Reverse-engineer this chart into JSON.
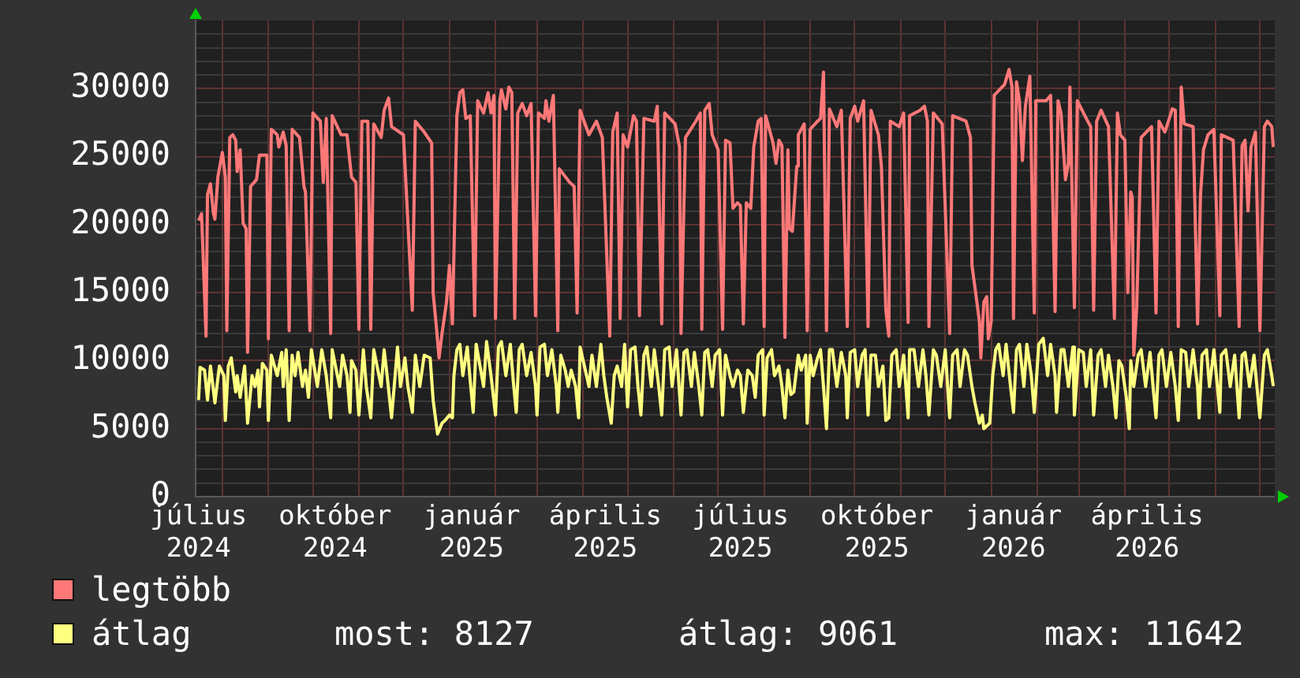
{
  "chart_data": {
    "type": "line",
    "legend": "bottom left",
    "grid": true,
    "marker": "none",
    "xlim": [
      "2024-07-14",
      "2026-07-11"
    ],
    "xticks": [
      {
        "value": "2024-07-16",
        "label": "július 2024"
      },
      {
        "value": "2024-08-01",
        "label": null
      },
      {
        "value": "2024-09-01",
        "label": null
      },
      {
        "value": "2024-10-01",
        "label": null
      },
      {
        "value": "2024-10-16",
        "label": "október 2024"
      },
      {
        "value": "2024-11-01",
        "label": null
      },
      {
        "value": "2024-12-01",
        "label": null
      },
      {
        "value": "2025-01-01",
        "label": null
      },
      {
        "value": "2025-01-16",
        "label": "január 2025"
      },
      {
        "value": "2025-02-01",
        "label": null
      },
      {
        "value": "2025-03-01",
        "label": null
      },
      {
        "value": "2025-04-01",
        "label": null
      },
      {
        "value": "2025-04-16",
        "label": "április 2025"
      },
      {
        "value": "2025-05-01",
        "label": null
      },
      {
        "value": "2025-06-01",
        "label": null
      },
      {
        "value": "2025-07-01",
        "label": null
      },
      {
        "value": "2025-07-16",
        "label": "július 2025"
      },
      {
        "value": "2025-08-01",
        "label": null
      },
      {
        "value": "2025-09-01",
        "label": null
      },
      {
        "value": "2025-10-01",
        "label": null
      },
      {
        "value": "2025-10-16",
        "label": "október 2025"
      },
      {
        "value": "2025-11-01",
        "label": null
      },
      {
        "value": "2025-12-01",
        "label": null
      },
      {
        "value": "2026-01-01",
        "label": null
      },
      {
        "value": "2026-01-16",
        "label": "január 2026"
      },
      {
        "value": "2026-02-01",
        "label": null
      },
      {
        "value": "2026-03-01",
        "label": null
      },
      {
        "value": "2026-04-01",
        "label": null
      },
      {
        "value": "2026-04-16",
        "label": "április 2026"
      },
      {
        "value": "2026-05-01",
        "label": null
      },
      {
        "value": "2026-06-01",
        "label": null
      },
      {
        "value": "2026-07-01",
        "label": null
      }
    ],
    "ylim": [
      0,
      35000
    ],
    "yticks": [
      0,
      {
        "value": 1000,
        "label": null
      },
      {
        "value": 2000,
        "label": null
      },
      {
        "value": 3000,
        "label": null
      },
      {
        "value": 4000,
        "label": null
      },
      5000,
      {
        "value": 6000,
        "label": null
      },
      {
        "value": 7000,
        "label": null
      },
      {
        "value": 8000,
        "label": null
      },
      {
        "value": 9000,
        "label": null
      },
      10000,
      {
        "value": 11000,
        "label": null
      },
      {
        "value": 12000,
        "label": null
      },
      {
        "value": 13000,
        "label": null
      },
      {
        "value": 14000,
        "label": null
      },
      15000,
      {
        "value": 16000,
        "label": null
      },
      {
        "value": 17000,
        "label": null
      },
      {
        "value": 18000,
        "label": null
      },
      {
        "value": 19000,
        "label": null
      },
      20000,
      {
        "value": 21000,
        "label": null
      },
      {
        "value": 22000,
        "label": null
      },
      {
        "value": 23000,
        "label": null
      },
      {
        "value": 24000,
        "label": null
      },
      25000,
      {
        "value": 26000,
        "label": null
      },
      {
        "value": 27000,
        "label": null
      },
      {
        "value": 28000,
        "label": null
      },
      {
        "value": 29000,
        "label": null
      },
      30000,
      {
        "value": 31000,
        "label": null
      },
      {
        "value": 32000,
        "label": null
      },
      {
        "value": 33000,
        "label": null
      },
      {
        "value": 34000,
        "label": null
      }
    ],
    "annotations": [
      "most: 8127",
      "átlag: 9061",
      "max: 11642"
    ],
    "series": [
      {
        "name": "legtöbb",
        "color": "#ff7878",
        "x": [
          "2024-07-16",
          "2024-07-18",
          "2024-07-21",
          "2024-07-22",
          "2024-07-24",
          "2024-07-26",
          "2024-07-27",
          "2024-07-29",
          "2024-08-01",
          "2024-08-03",
          "2024-08-04",
          "2024-08-06",
          "2024-08-08",
          "2024-08-10",
          "2024-08-11",
          "2024-08-13",
          "2024-08-15",
          "2024-08-17",
          "2024-08-18",
          "2024-08-20",
          "2024-08-24",
          "2024-08-26",
          "2024-08-31",
          "2024-09-01",
          "2024-09-03",
          "2024-09-07",
          "2024-09-08",
          "2024-09-11",
          "2024-09-13",
          "2024-09-15",
          "2024-09-17",
          "2024-09-22",
          "2024-09-25",
          "2024-09-26",
          "2024-09-29",
          "2024-10-01",
          "2024-10-06",
          "2024-10-08",
          "2024-10-10",
          "2024-10-13",
          "2024-10-14",
          "2024-10-20",
          "2024-10-24",
          "2024-10-27",
          "2024-10-30",
          "2024-11-01",
          "2024-11-03",
          "2024-11-07",
          "2024-11-09",
          "2024-11-11",
          "2024-11-16",
          "2024-11-18",
          "2024-11-21",
          "2024-11-23",
          "2024-12-01",
          "2024-12-07",
          "2024-12-09",
          "2024-12-15",
          "2024-12-20",
          "2024-12-21",
          "2024-12-23",
          "2024-12-25",
          "2024-12-27",
          "2024-12-30",
          "2025-01-01",
          "2025-01-03",
          "2025-01-06",
          "2025-01-08",
          "2025-01-10",
          "2025-01-12",
          "2025-01-15",
          "2025-01-18",
          "2025-01-20",
          "2025-01-24",
          "2025-01-27",
          "2025-01-29",
          "2025-01-31",
          "2025-02-01",
          "2025-02-04",
          "2025-02-05",
          "2025-02-08",
          "2025-02-10",
          "2025-02-12",
          "2025-02-14",
          "2025-02-16",
          "2025-02-19",
          "2025-02-22",
          "2025-02-25",
          "2025-02-28",
          "2025-03-02",
          "2025-03-06",
          "2025-03-07",
          "2025-03-09",
          "2025-03-12",
          "2025-03-15",
          "2025-03-16",
          "2025-03-23",
          "2025-03-26",
          "2025-03-28",
          "2025-03-30",
          "2025-04-05",
          "2025-04-10",
          "2025-04-14",
          "2025-04-19",
          "2025-04-21",
          "2025-04-24",
          "2025-04-26",
          "2025-04-28",
          "2025-05-01",
          "2025-05-05",
          "2025-05-07",
          "2025-05-09",
          "2025-05-12",
          "2025-05-19",
          "2025-05-21",
          "2025-05-24",
          "2025-05-26",
          "2025-06-02",
          "2025-06-05",
          "2025-06-06",
          "2025-06-09",
          "2025-06-16",
          "2025-06-19",
          "2025-06-20",
          "2025-06-22",
          "2025-06-25",
          "2025-06-27",
          "2025-07-01",
          "2025-07-04",
          "2025-07-06",
          "2025-07-09",
          "2025-07-11",
          "2025-07-14",
          "2025-07-16",
          "2025-07-18",
          "2025-07-20",
          "2025-07-23",
          "2025-07-25",
          "2025-07-28",
          "2025-07-30",
          "2025-08-01",
          "2025-08-02",
          "2025-08-07",
          "2025-08-09",
          "2025-08-11",
          "2025-08-13",
          "2025-08-15",
          "2025-08-17",
          "2025-08-18",
          "2025-08-20",
          "2025-08-23",
          "2025-08-24",
          "2025-08-28",
          "2025-08-30",
          "2025-09-01",
          "2025-09-06",
          "2025-09-08",
          "2025-09-10",
          "2025-09-12",
          "2025-09-14",
          "2025-09-19",
          "2025-09-22",
          "2025-09-26",
          "2025-09-28",
          "2025-10-01",
          "2025-10-03",
          "2025-10-07",
          "2025-10-10",
          "2025-10-12",
          "2025-10-17",
          "2025-10-19",
          "2025-10-22",
          "2025-10-24",
          "2025-10-25",
          "2025-10-31",
          "2025-11-03",
          "2025-11-06",
          "2025-11-07",
          "2025-11-14",
          "2025-11-17",
          "2025-11-19",
          "2025-11-20",
          "2025-11-23",
          "2025-11-29",
          "2025-12-04",
          "2025-12-06",
          "2025-12-15",
          "2025-12-18",
          "2025-12-19",
          "2025-12-21",
          "2025-12-24",
          "2025-12-25",
          "2025-12-27",
          "2025-12-29",
          "2025-12-30",
          "2026-01-01",
          "2026-01-03",
          "2026-01-10",
          "2026-01-13",
          "2026-01-15",
          "2026-01-16",
          "2026-01-18",
          "2026-01-20",
          "2026-01-22",
          "2026-01-24",
          "2026-01-27",
          "2026-01-30",
          "2026-01-31",
          "2026-02-07",
          "2026-02-10",
          "2026-02-13",
          "2026-02-15",
          "2026-02-17",
          "2026-02-20",
          "2026-02-22",
          "2026-02-23",
          "2026-02-26",
          "2026-02-28",
          "2026-03-06",
          "2026-03-09",
          "2026-03-11",
          "2026-03-13",
          "2026-03-16",
          "2026-03-21",
          "2026-03-25",
          "2026-03-27",
          "2026-03-29",
          "2026-04-01",
          "2026-04-03",
          "2026-04-05",
          "2026-04-06",
          "2026-04-07",
          "2026-04-09",
          "2026-04-12",
          "2026-04-19",
          "2026-04-22",
          "2026-04-24",
          "2026-04-28",
          "2026-05-03",
          "2026-05-05",
          "2026-05-07",
          "2026-05-09",
          "2026-05-11",
          "2026-05-17",
          "2026-05-20",
          "2026-05-22",
          "2026-05-24",
          "2026-05-27",
          "2026-05-31",
          "2026-06-04",
          "2026-06-05",
          "2026-06-13",
          "2026-06-17",
          "2026-06-19",
          "2026-06-21",
          "2026-06-23",
          "2026-06-25",
          "2026-06-28",
          "2026-07-01",
          "2026-07-04",
          "2026-07-06",
          "2026-07-09",
          "2026-07-10"
        ],
        "values": [
          20300,
          20800,
          11800,
          22200,
          23000,
          20800,
          20400,
          23500,
          25300,
          23500,
          12200,
          26400,
          26600,
          26200,
          23900,
          25500,
          20100,
          19700,
          10600,
          22800,
          23300,
          25100,
          25100,
          11600,
          27000,
          26600,
          25700,
          26800,
          25800,
          12200,
          27000,
          26400,
          22800,
          22400,
          12200,
          28200,
          27600,
          23100,
          27800,
          12000,
          28000,
          26600,
          26600,
          23500,
          23100,
          12300,
          27600,
          27600,
          12300,
          27400,
          26400,
          28400,
          29300,
          27200,
          26600,
          13700,
          27600,
          26800,
          26000,
          15000,
          12700,
          10200,
          12000,
          14300,
          17000,
          12700,
          28000,
          29700,
          29900,
          27800,
          28000,
          13300,
          29100,
          28200,
          29700,
          28200,
          29500,
          13100,
          29100,
          29900,
          28500,
          30100,
          29700,
          13100,
          28200,
          28900,
          28000,
          28900,
          13300,
          28200,
          27800,
          29100,
          27600,
          29500,
          12200,
          24100,
          23100,
          22800,
          13500,
          28400,
          26600,
          27600,
          26400,
          11800,
          26800,
          28200,
          13100,
          26600,
          25700,
          28000,
          27600,
          13300,
          27800,
          27600,
          28700,
          12700,
          28200,
          27400,
          25700,
          12000,
          26400,
          27600,
          28200,
          12300,
          28400,
          28900,
          26600,
          25500,
          12300,
          26200,
          26000,
          21200,
          21600,
          21400,
          12700,
          21600,
          21200,
          25700,
          27600,
          27800,
          12500,
          28000,
          26000,
          24500,
          26200,
          25800,
          11700,
          25500,
          19700,
          19500,
          24300,
          26600,
          27400,
          12200,
          27000,
          27600,
          27800,
          31200,
          12200,
          28500,
          27200,
          28400,
          12500,
          27800,
          28700,
          27600,
          29100,
          12500,
          28400,
          26600,
          24300,
          13700,
          11800,
          27600,
          27200,
          28200,
          12800,
          28000,
          28400,
          28700,
          27600,
          12500,
          28200,
          27400,
          12000,
          28000,
          27600,
          26400,
          17000,
          15400,
          12900,
          10200,
          14300,
          14700,
          11600,
          12900,
          29500,
          30300,
          31400,
          30100,
          13100,
          30500,
          29100,
          24700,
          28700,
          30900,
          13500,
          29100,
          29100,
          29500,
          13600,
          29100,
          28200,
          23300,
          24500,
          30100,
          13900,
          29100,
          27800,
          27200,
          13700,
          27600,
          28400,
          27200,
          13100,
          28200,
          26600,
          26200,
          15000,
          22400,
          22000,
          10400,
          13900,
          26400,
          27200,
          13500,
          27600,
          26800,
          28500,
          28400,
          12500,
          30100,
          27400,
          27200,
          12700,
          22200,
          25500,
          26600,
          27000,
          13300,
          26600,
          26200,
          12500,
          25800,
          26200,
          21000,
          25700,
          26800,
          12200,
          27200,
          27600,
          27200,
          25700
        ]
      },
      {
        "name": "átlag",
        "color": "#ffff80",
        "x": [
          "2024-07-16",
          "2024-07-17",
          "2024-07-20",
          "2024-07-22",
          "2024-07-24",
          "2024-07-27",
          "2024-07-30",
          "2024-08-02",
          "2024-08-03",
          "2024-08-05",
          "2024-08-07",
          "2024-08-10",
          "2024-08-11",
          "2024-08-13",
          "2024-08-16",
          "2024-08-18",
          "2024-08-21",
          "2024-08-23",
          "2024-08-25",
          "2024-08-26",
          "2024-08-28",
          "2024-08-31",
          "2024-09-01",
          "2024-09-03",
          "2024-09-07",
          "2024-09-10",
          "2024-09-11",
          "2024-09-13",
          "2024-09-15",
          "2024-09-17",
          "2024-09-19",
          "2024-09-21",
          "2024-09-24",
          "2024-09-26",
          "2024-09-28",
          "2024-09-30",
          "2024-10-04",
          "2024-10-07",
          "2024-10-10",
          "2024-10-13",
          "2024-10-14",
          "2024-10-19",
          "2024-10-21",
          "2024-10-24",
          "2024-10-26",
          "2024-10-27",
          "2024-10-30",
          "2024-11-01",
          "2024-11-04",
          "2024-11-06",
          "2024-11-09",
          "2024-11-11",
          "2024-11-16",
          "2024-11-18",
          "2024-11-20",
          "2024-11-23",
          "2024-11-27",
          "2024-11-29",
          "2024-12-02",
          "2024-12-04",
          "2024-12-07",
          "2024-12-09",
          "2024-12-12",
          "2024-12-15",
          "2024-12-19",
          "2024-12-21",
          "2024-12-24",
          "2024-12-27",
          "2024-12-29",
          "2025-01-01",
          "2025-01-03",
          "2025-01-04",
          "2025-01-06",
          "2025-01-08",
          "2025-01-10",
          "2025-01-13",
          "2025-01-15",
          "2025-01-17",
          "2025-01-19",
          "2025-01-24",
          "2025-01-26",
          "2025-01-29",
          "2025-02-01",
          "2025-02-03",
          "2025-02-05",
          "2025-02-08",
          "2025-02-11",
          "2025-02-13",
          "2025-02-15",
          "2025-02-17",
          "2025-02-19",
          "2025-02-22",
          "2025-02-25",
          "2025-02-28",
          "2025-03-01",
          "2025-03-03",
          "2025-03-06",
          "2025-03-08",
          "2025-03-11",
          "2025-03-14",
          "2025-03-15",
          "2025-03-17",
          "2025-03-20",
          "2025-03-22",
          "2025-03-24",
          "2025-03-27",
          "2025-03-29",
          "2025-03-30",
          "2025-04-05",
          "2025-04-07",
          "2025-04-10",
          "2025-04-13",
          "2025-04-15",
          "2025-04-17",
          "2025-04-20",
          "2025-04-22",
          "2025-04-24",
          "2025-04-27",
          "2025-04-29",
          "2025-05-01",
          "2025-05-03",
          "2025-05-06",
          "2025-05-08",
          "2025-05-10",
          "2025-05-12",
          "2025-05-14",
          "2025-05-17",
          "2025-05-19",
          "2025-05-22",
          "2025-05-24",
          "2025-05-26",
          "2025-05-29",
          "2025-05-31",
          "2025-06-03",
          "2025-06-06",
          "2025-06-08",
          "2025-06-10",
          "2025-06-13",
          "2025-06-15",
          "2025-06-18",
          "2025-06-20",
          "2025-06-22",
          "2025-06-24",
          "2025-06-27",
          "2025-06-29",
          "2025-07-02",
          "2025-07-04",
          "2025-07-06",
          "2025-07-09",
          "2025-07-11",
          "2025-07-14",
          "2025-07-16",
          "2025-07-18",
          "2025-07-21",
          "2025-07-24",
          "2025-07-26",
          "2025-07-28",
          "2025-07-31",
          "2025-08-01",
          "2025-08-03",
          "2025-08-06",
          "2025-08-08",
          "2025-08-11",
          "2025-08-13",
          "2025-08-15",
          "2025-08-17",
          "2025-08-19",
          "2025-08-21",
          "2025-08-24",
          "2025-08-26",
          "2025-08-29",
          "2025-08-30",
          "2025-09-01",
          "2025-09-03",
          "2025-09-06",
          "2025-09-08",
          "2025-09-10",
          "2025-09-12",
          "2025-09-14",
          "2025-09-16",
          "2025-09-19",
          "2025-09-22",
          "2025-09-25",
          "2025-09-26",
          "2025-09-28",
          "2025-10-01",
          "2025-10-03",
          "2025-10-06",
          "2025-10-08",
          "2025-10-10",
          "2025-10-12",
          "2025-10-15",
          "2025-10-17",
          "2025-10-20",
          "2025-10-22",
          "2025-10-24",
          "2025-10-26",
          "2025-10-29",
          "2025-10-31",
          "2025-11-03",
          "2025-11-06",
          "2025-11-07",
          "2025-11-10",
          "2025-11-13",
          "2025-11-16",
          "2025-11-18",
          "2025-11-20",
          "2025-11-23",
          "2025-11-25",
          "2025-11-28",
          "2025-12-01",
          "2025-12-04",
          "2025-12-06",
          "2025-12-09",
          "2025-12-11",
          "2025-12-14",
          "2025-12-16",
          "2025-12-19",
          "2025-12-21",
          "2025-12-24",
          "2025-12-26",
          "2025-12-27",
          "2025-12-29",
          "2025-12-31",
          "2026-01-02",
          "2026-01-04",
          "2026-01-06",
          "2026-01-09",
          "2026-01-11",
          "2026-01-14",
          "2026-01-16",
          "2026-01-18",
          "2026-01-20",
          "2026-01-23",
          "2026-01-25",
          "2026-01-28",
          "2026-01-30",
          "2026-02-02",
          "2026-02-05",
          "2026-02-08",
          "2026-02-10",
          "2026-02-13",
          "2026-02-14",
          "2026-02-17",
          "2026-02-19",
          "2026-02-22",
          "2026-02-25",
          "2026-02-26",
          "2026-03-01",
          "2026-03-04",
          "2026-03-06",
          "2026-03-09",
          "2026-03-11",
          "2026-03-14",
          "2026-03-16",
          "2026-03-19",
          "2026-03-21",
          "2026-03-24",
          "2026-03-26",
          "2026-03-28",
          "2026-03-30",
          "2026-04-02",
          "2026-04-04",
          "2026-04-05",
          "2026-04-07",
          "2026-04-10",
          "2026-04-12",
          "2026-04-15",
          "2026-04-18",
          "2026-04-20",
          "2026-04-22",
          "2026-04-24",
          "2026-04-26",
          "2026-04-29",
          "2026-05-02",
          "2026-05-05",
          "2026-05-07",
          "2026-05-09",
          "2026-05-12",
          "2026-05-14",
          "2026-05-17",
          "2026-05-20",
          "2026-05-21",
          "2026-05-23",
          "2026-05-26",
          "2026-05-28",
          "2026-05-31",
          "2026-06-04",
          "2026-06-05",
          "2026-06-08",
          "2026-06-11",
          "2026-06-14",
          "2026-06-17",
          "2026-06-19",
          "2026-06-21",
          "2026-06-24",
          "2026-06-27",
          "2026-06-29",
          "2026-07-01",
          "2026-07-04",
          "2026-07-06",
          "2026-07-09",
          "2026-07-10"
        ],
        "values": [
          7100,
          9500,
          9300,
          7100,
          9600,
          6900,
          9600,
          8900,
          5600,
          9600,
          10200,
          7700,
          8900,
          7300,
          9600,
          5400,
          8900,
          8100,
          9300,
          6600,
          9800,
          9300,
          5600,
          10400,
          8900,
          10600,
          8100,
          10800,
          5600,
          10400,
          8900,
          10600,
          8100,
          9300,
          7300,
          10800,
          8100,
          10800,
          8900,
          5800,
          10800,
          8100,
          10400,
          8900,
          6200,
          10000,
          9300,
          6000,
          10800,
          8100,
          5800,
          10800,
          8100,
          10800,
          8900,
          5800,
          11000,
          8100,
          10200,
          8100,
          6200,
          10400,
          8100,
          10400,
          10200,
          7100,
          4600,
          5400,
          5600,
          6000,
          5800,
          8900,
          10800,
          11200,
          8900,
          11000,
          8500,
          6200,
          11200,
          8100,
          11400,
          8900,
          6000,
          11000,
          11400,
          8900,
          11200,
          8500,
          6200,
          10800,
          11200,
          8900,
          10600,
          8100,
          6000,
          11000,
          11200,
          8900,
          10800,
          8100,
          6200,
          10400,
          9300,
          8100,
          9300,
          8100,
          5800,
          11000,
          8100,
          10400,
          8100,
          11200,
          8900,
          7300,
          5400,
          8900,
          9600,
          8100,
          11200,
          6600,
          10800,
          11000,
          8100,
          6000,
          10400,
          11000,
          8100,
          10800,
          8100,
          6000,
          10800,
          11000,
          8100,
          10800,
          6000,
          10600,
          10800,
          8100,
          10600,
          8100,
          6000,
          10600,
          10800,
          8100,
          10400,
          10800,
          6000,
          10400,
          8900,
          8100,
          9300,
          8900,
          6200,
          9300,
          8900,
          7300,
          10400,
          10800,
          6000,
          10200,
          10800,
          8900,
          9600,
          8100,
          5800,
          9300,
          7500,
          7700,
          10400,
          9300,
          10400,
          5400,
          10400,
          8900,
          10200,
          10800,
          8100,
          5000,
          10800,
          10800,
          8100,
          10600,
          8900,
          5800,
          10600,
          10800,
          8100,
          10400,
          10800,
          6000,
          10400,
          10400,
          8100,
          9600,
          5600,
          5800,
          10400,
          10800,
          8100,
          10400,
          5800,
          10800,
          10800,
          8100,
          10800,
          8900,
          6000,
          10800,
          10400,
          8100,
          10800,
          5800,
          10400,
          10800,
          8100,
          10800,
          10400,
          8100,
          6900,
          5400,
          6000,
          5000,
          5200,
          5400,
          8900,
          10800,
          11200,
          8900,
          11200,
          8100,
          6200,
          10800,
          11200,
          8100,
          11200,
          8900,
          6200,
          11200,
          11642,
          8900,
          11200,
          8900,
          6200,
          10800,
          10800,
          8100,
          11000,
          6000,
          10800,
          10600,
          8100,
          10800,
          6000,
          10400,
          10800,
          8100,
          10400,
          8100,
          5800,
          10000,
          9600,
          7300,
          5000,
          10000,
          8100,
          10400,
          10800,
          8100,
          10600,
          8100,
          5800,
          10400,
          10800,
          8100,
          10600,
          8100,
          5600,
          10800,
          10600,
          8100,
          10800,
          8100,
          5800,
          10400,
          10800,
          8100,
          10800,
          6200,
          10400,
          10800,
          8100,
          10400,
          5800,
          10400,
          10600,
          8100,
          10400,
          8100,
          5800,
          10400,
          10800,
          8900,
          8127
        ]
      }
    ]
  }
}
